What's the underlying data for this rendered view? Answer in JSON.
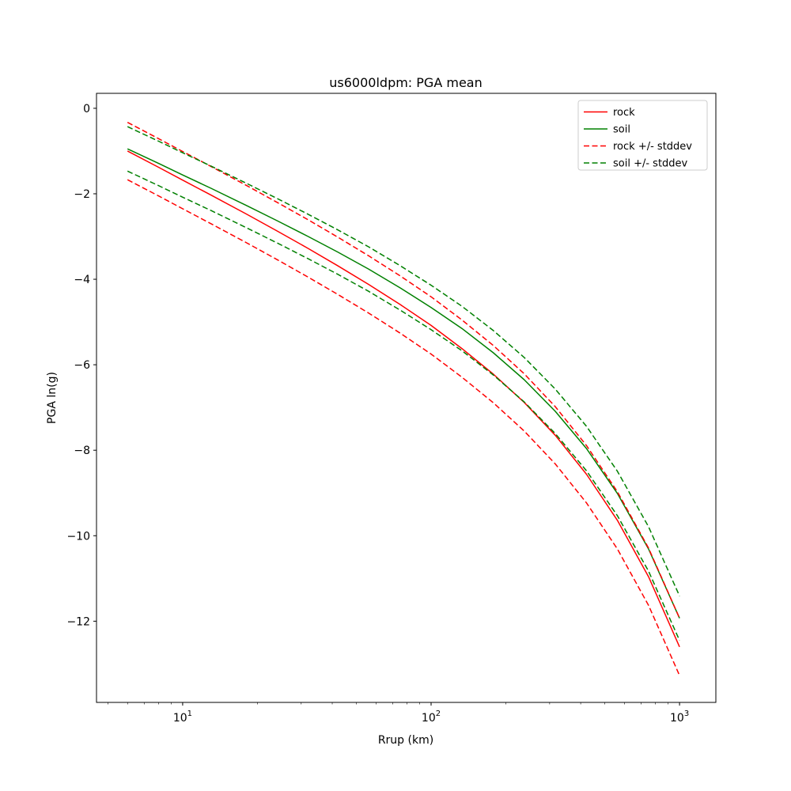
{
  "chart_data": {
    "type": "line",
    "title": "us6000ldpm: PGA mean",
    "xlabel": "Rrup (km)",
    "ylabel": "PGA ln(g)",
    "x_scale": "log",
    "xlim": [
      4.5,
      1400
    ],
    "ylim": [
      -13.9,
      0.35
    ],
    "x_ticks": [
      10,
      100,
      1000
    ],
    "y_ticks": [
      0,
      -2,
      -4,
      -6,
      -8,
      -10,
      -12
    ],
    "grid": false,
    "legend_position": "upper right",
    "x": [
      6,
      8,
      10,
      13,
      18,
      24,
      32,
      42,
      56,
      75,
      100,
      133,
      178,
      237,
      316,
      422,
      562,
      750,
      1000
    ],
    "series": [
      {
        "name": "rock",
        "color": "#ff0000",
        "line_style": "solid",
        "values": [
          -1.0,
          -1.38,
          -1.68,
          -2.03,
          -2.47,
          -2.87,
          -3.28,
          -3.68,
          -4.12,
          -4.59,
          -5.08,
          -5.62,
          -6.22,
          -6.88,
          -7.65,
          -8.56,
          -9.64,
          -10.96,
          -12.6
        ]
      },
      {
        "name": "soil",
        "color": "#008000",
        "line_style": "solid",
        "values": [
          -0.95,
          -1.29,
          -1.56,
          -1.87,
          -2.27,
          -2.63,
          -3.0,
          -3.36,
          -3.76,
          -4.2,
          -4.66,
          -5.15,
          -5.72,
          -6.35,
          -7.09,
          -7.96,
          -9.01,
          -10.31,
          -11.93
        ]
      },
      {
        "name": "rock +/- stddev",
        "color": "#ff0000",
        "line_style": "dashed",
        "base": "rock",
        "stddev": 0.67
      },
      {
        "name": "soil +/- stddev",
        "color": "#008000",
        "line_style": "dashed",
        "base": "soil",
        "stddev": 0.52
      }
    ]
  }
}
